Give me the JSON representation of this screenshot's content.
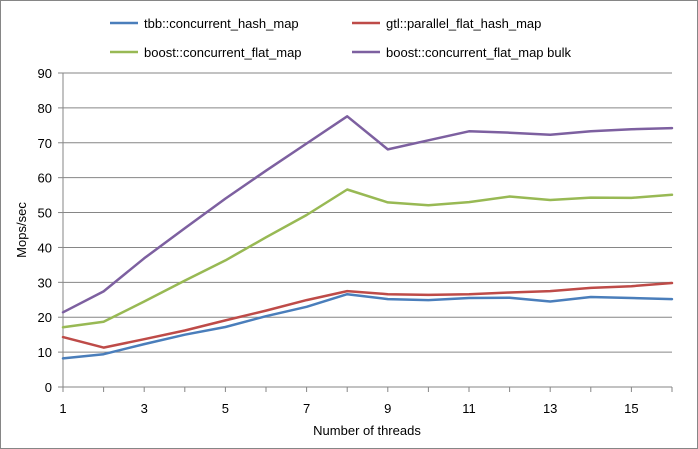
{
  "chart_data": {
    "type": "line",
    "xlabel": "Number of threads",
    "ylabel": "Mops/sec",
    "xlim": [
      1,
      16
    ],
    "ylim": [
      0,
      90
    ],
    "x_tick_labels": [
      "1",
      "3",
      "5",
      "7",
      "9",
      "11",
      "13",
      "15"
    ],
    "y_tick_labels": [
      "0",
      "10",
      "20",
      "30",
      "40",
      "50",
      "60",
      "70",
      "80",
      "90"
    ],
    "grid": "horizontal",
    "legend_position": "top",
    "x": [
      1,
      2,
      3,
      4,
      5,
      6,
      7,
      8,
      9,
      10,
      11,
      12,
      13,
      14,
      15,
      16
    ],
    "series": [
      {
        "name": "tbb::concurrent_hash_map",
        "color": "#4a7ebb",
        "values": [
          8.2,
          9.4,
          12.3,
          15.0,
          17.2,
          20.3,
          23.0,
          26.6,
          25.2,
          24.9,
          25.5,
          25.6,
          24.5,
          25.8,
          25.5,
          25.2
        ]
      },
      {
        "name": "gtl::parallel_flat_hash_map",
        "color": "#be4b48",
        "values": [
          14.3,
          11.3,
          13.7,
          16.2,
          19.1,
          21.9,
          24.9,
          27.5,
          26.6,
          26.4,
          26.6,
          27.1,
          27.5,
          28.4,
          28.9,
          29.8
        ]
      },
      {
        "name": "boost::concurrent_flat_map",
        "color": "#98b954",
        "values": [
          17.1,
          18.7,
          24.5,
          30.5,
          36.3,
          42.9,
          49.3,
          56.6,
          52.9,
          52.1,
          53.0,
          54.6,
          53.6,
          54.3,
          54.2,
          55.1
        ]
      },
      {
        "name": "boost::concurrent_flat_map bulk",
        "color": "#7d60a0",
        "values": [
          21.4,
          27.4,
          36.9,
          45.5,
          54.0,
          62.0,
          69.8,
          77.6,
          68.1,
          70.7,
          73.3,
          72.9,
          72.3,
          73.3,
          73.9,
          74.2
        ]
      }
    ]
  }
}
